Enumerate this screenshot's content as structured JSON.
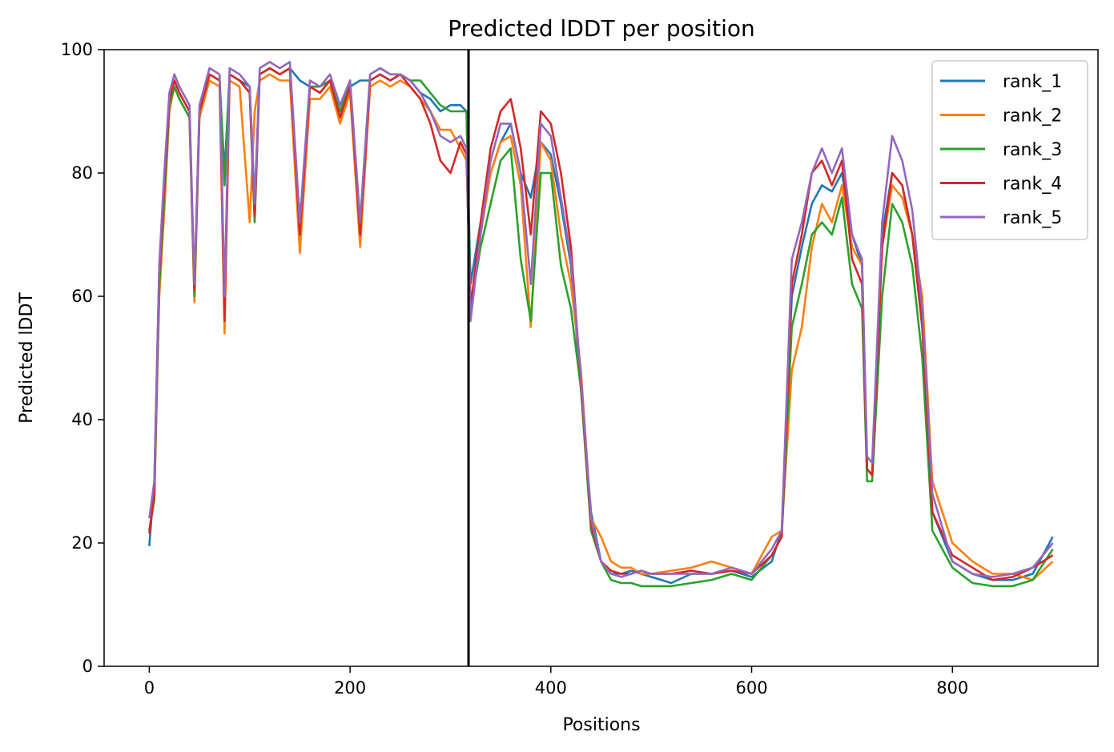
{
  "chart_data": {
    "type": "line",
    "title": "Predicted lDDT per position",
    "xlabel": "Positions",
    "ylabel": "Predicted lDDT",
    "xlim": [
      -45,
      945
    ],
    "ylim": [
      0,
      100
    ],
    "xticks": [
      0,
      200,
      400,
      600,
      800
    ],
    "yticks": [
      0,
      20,
      40,
      60,
      80,
      100
    ],
    "grid": false,
    "legend_position": "top-right",
    "divider_x": 318,
    "divider_color": "#000000",
    "x": [
      0,
      5,
      10,
      15,
      20,
      25,
      30,
      40,
      45,
      50,
      60,
      70,
      75,
      80,
      90,
      100,
      105,
      110,
      120,
      130,
      140,
      150,
      160,
      170,
      180,
      190,
      200,
      210,
      220,
      230,
      240,
      250,
      260,
      270,
      280,
      290,
      300,
      310,
      316,
      320,
      330,
      340,
      350,
      360,
      370,
      380,
      390,
      400,
      410,
      420,
      430,
      440,
      450,
      460,
      470,
      480,
      490,
      500,
      520,
      540,
      560,
      580,
      600,
      620,
      630,
      640,
      650,
      660,
      670,
      680,
      690,
      700,
      710,
      715,
      720,
      730,
      740,
      750,
      760,
      770,
      780,
      800,
      820,
      840,
      860,
      880,
      900
    ],
    "series": [
      {
        "name": "rank_1",
        "color": "#1f77b4",
        "values": [
          19.5,
          30,
          65,
          80,
          92,
          95,
          93,
          90,
          60,
          90,
          96,
          95,
          80,
          96,
          95,
          94,
          75,
          96,
          97,
          96,
          97,
          95,
          94,
          93,
          95,
          90,
          94,
          95,
          95,
          96,
          95,
          96,
          95,
          93,
          92,
          90,
          91,
          91,
          90,
          62,
          72,
          80,
          85,
          88,
          80,
          76,
          85,
          83,
          75,
          65,
          45,
          25,
          17,
          15,
          15,
          15.5,
          15,
          14.5,
          13.5,
          15,
          15,
          15.5,
          14.5,
          17,
          22,
          60,
          68,
          75,
          78,
          77,
          80,
          70,
          65,
          32,
          31,
          70,
          80,
          78,
          70,
          55,
          25,
          17,
          15,
          14,
          14,
          15,
          21
        ]
      },
      {
        "name": "rank_2",
        "color": "#ff7f0e",
        "values": [
          22,
          28,
          60,
          74,
          90,
          94,
          92,
          89,
          59,
          89,
          95,
          94,
          54,
          95,
          94,
          72,
          90,
          95,
          96,
          95,
          95,
          67,
          92,
          92,
          94,
          88,
          93,
          68,
          94,
          95,
          94,
          95,
          94,
          92,
          90,
          87,
          87,
          84,
          82,
          58,
          70,
          80,
          85,
          86,
          78,
          55,
          85,
          82,
          70,
          62,
          48,
          24,
          21,
          17,
          16,
          16,
          15,
          15,
          15.5,
          16,
          17,
          16,
          15,
          21,
          22,
          48,
          55,
          68,
          75,
          72,
          78,
          68,
          65,
          32,
          31,
          68,
          78,
          76,
          70,
          60,
          30,
          20,
          17,
          15,
          15,
          14,
          17
        ]
      },
      {
        "name": "rank_3",
        "color": "#2ca02c",
        "values": [
          22,
          27,
          62,
          76,
          91,
          94,
          92,
          89,
          60,
          90,
          96,
          95,
          78,
          96,
          95,
          93,
          72,
          96,
          97,
          96,
          97,
          72,
          94,
          94,
          95,
          90,
          95,
          72,
          96,
          97,
          96,
          96,
          95,
          95,
          93,
          91,
          90,
          90,
          90,
          58,
          68,
          75,
          82,
          84,
          66,
          56,
          80,
          80,
          65,
          58,
          45,
          22,
          17,
          14,
          13.5,
          13.5,
          13,
          13,
          13,
          13.5,
          14,
          15,
          14,
          18,
          21,
          55,
          62,
          70,
          72,
          70,
          76,
          62,
          58,
          30,
          30,
          60,
          75,
          72,
          65,
          50,
          22,
          16,
          13.5,
          13,
          13,
          14,
          19
        ]
      },
      {
        "name": "rank_4",
        "color": "#d62728",
        "values": [
          21.5,
          28,
          64,
          78,
          92,
          95,
          93,
          90,
          61,
          90,
          96,
          95,
          56,
          96,
          95,
          93,
          73,
          96,
          97,
          96,
          97,
          70,
          94,
          93,
          95,
          89,
          94,
          70,
          95,
          96,
          95,
          96,
          94,
          92,
          88,
          82,
          80,
          85,
          83,
          58,
          72,
          84,
          90,
          92,
          84,
          70,
          90,
          88,
          80,
          68,
          46,
          23,
          17,
          15.5,
          15,
          15,
          15.5,
          15,
          15,
          15.5,
          15,
          15.5,
          15,
          18,
          21,
          62,
          70,
          80,
          82,
          78,
          82,
          66,
          62,
          32,
          31,
          68,
          80,
          78,
          70,
          55,
          25,
          18,
          16,
          14,
          14.5,
          16,
          18
        ]
      },
      {
        "name": "rank_5",
        "color": "#9467bd",
        "values": [
          24,
          30,
          65,
          80,
          93,
          96,
          94,
          91,
          62,
          91,
          97,
          96,
          60,
          97,
          96,
          94,
          75,
          97,
          98,
          97,
          98,
          72,
          95,
          94,
          96,
          91,
          95,
          72,
          96,
          97,
          96,
          96,
          95,
          93,
          90,
          86,
          85,
          86,
          84,
          56,
          70,
          82,
          88,
          88,
          80,
          62,
          88,
          86,
          76,
          66,
          47,
          24,
          17,
          15,
          14.5,
          15,
          15.5,
          15,
          15,
          15,
          15,
          16,
          15,
          19,
          22,
          66,
          72,
          80,
          84,
          80,
          84,
          70,
          66,
          34,
          33,
          72,
          86,
          82,
          74,
          58,
          28,
          17,
          15,
          14.5,
          15,
          16,
          20
        ]
      }
    ]
  }
}
